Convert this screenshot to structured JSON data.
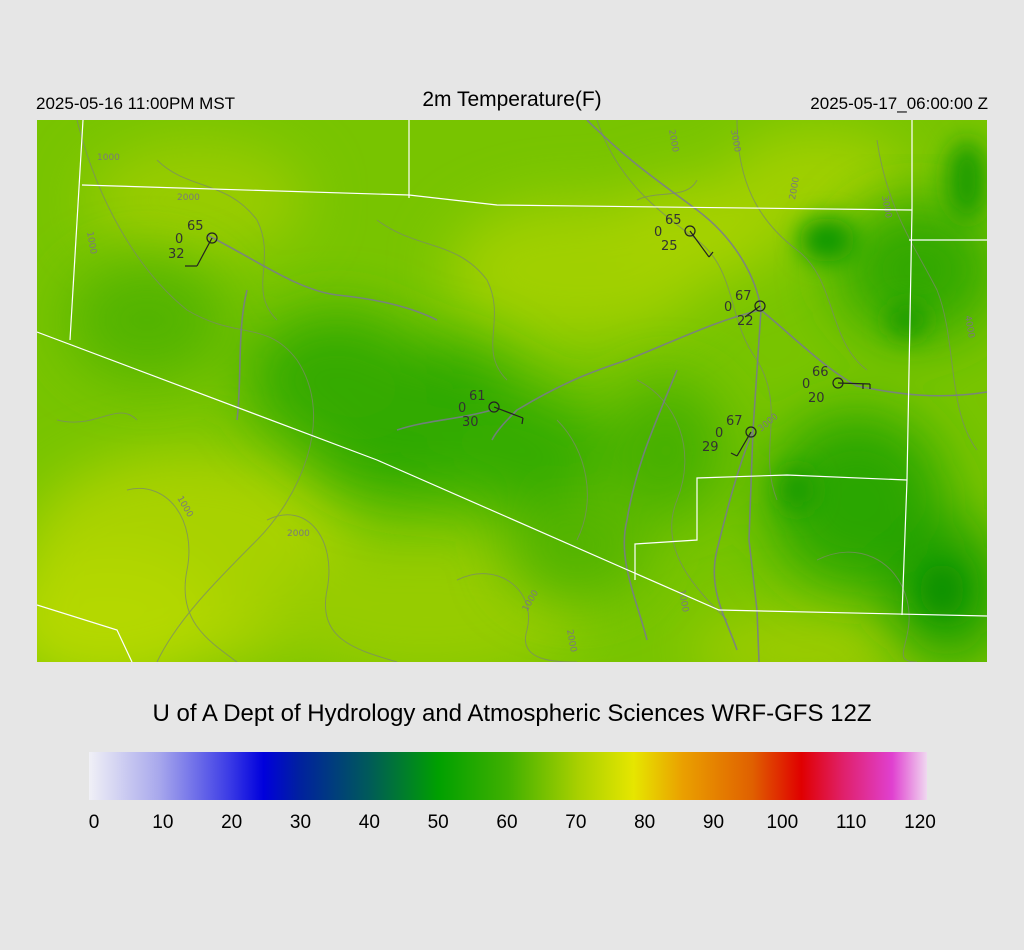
{
  "header": {
    "local_time": "2025-05-16 11:00PM MST",
    "title": "2m Temperature(F)",
    "valid_time": "2025-05-17_06:00:00 Z"
  },
  "credit": "U of A Dept of Hydrology and Atmospheric Sciences WRF-GFS 12Z",
  "colorbar": {
    "ticks": [
      "0",
      "10",
      "20",
      "30",
      "40",
      "50",
      "60",
      "70",
      "80",
      "90",
      "100",
      "110",
      "120"
    ],
    "stops": [
      {
        "value": 0,
        "color": "#f0f0f6"
      },
      {
        "value": 10,
        "color": "#a8a8ec"
      },
      {
        "value": 20,
        "color": "#3c3ce6"
      },
      {
        "value": 25,
        "color": "#0000dc"
      },
      {
        "value": 30,
        "color": "#0020a0"
      },
      {
        "value": 40,
        "color": "#005a5a"
      },
      {
        "value": 50,
        "color": "#00a000"
      },
      {
        "value": 60,
        "color": "#40b000"
      },
      {
        "value": 70,
        "color": "#a8d000"
      },
      {
        "value": 78,
        "color": "#e6e600"
      },
      {
        "value": 85,
        "color": "#eaa000"
      },
      {
        "value": 95,
        "color": "#e06000"
      },
      {
        "value": 102,
        "color": "#e00000"
      },
      {
        "value": 108,
        "color": "#e0206a"
      },
      {
        "value": 115,
        "color": "#e040d0"
      },
      {
        "value": 120,
        "color": "#f0d8f0"
      }
    ]
  },
  "contour_labels": [
    "1000",
    "1000",
    "2000",
    "1000",
    "2000",
    "1000",
    "2000",
    "3000",
    "2000",
    "3000",
    "3000",
    "2000",
    "4000",
    "1000"
  ],
  "stations": [
    {
      "temp": "65",
      "dew": "32",
      "wind": "0"
    },
    {
      "temp": "65",
      "dew": "25",
      "wind": "0"
    },
    {
      "temp": "67",
      "dew": "22",
      "wind": "0"
    },
    {
      "temp": "66",
      "dew": "20",
      "wind": "0"
    },
    {
      "temp": "61",
      "dew": "30",
      "wind": "0"
    },
    {
      "temp": "67",
      "dew": "29",
      "wind": "0"
    }
  ]
}
